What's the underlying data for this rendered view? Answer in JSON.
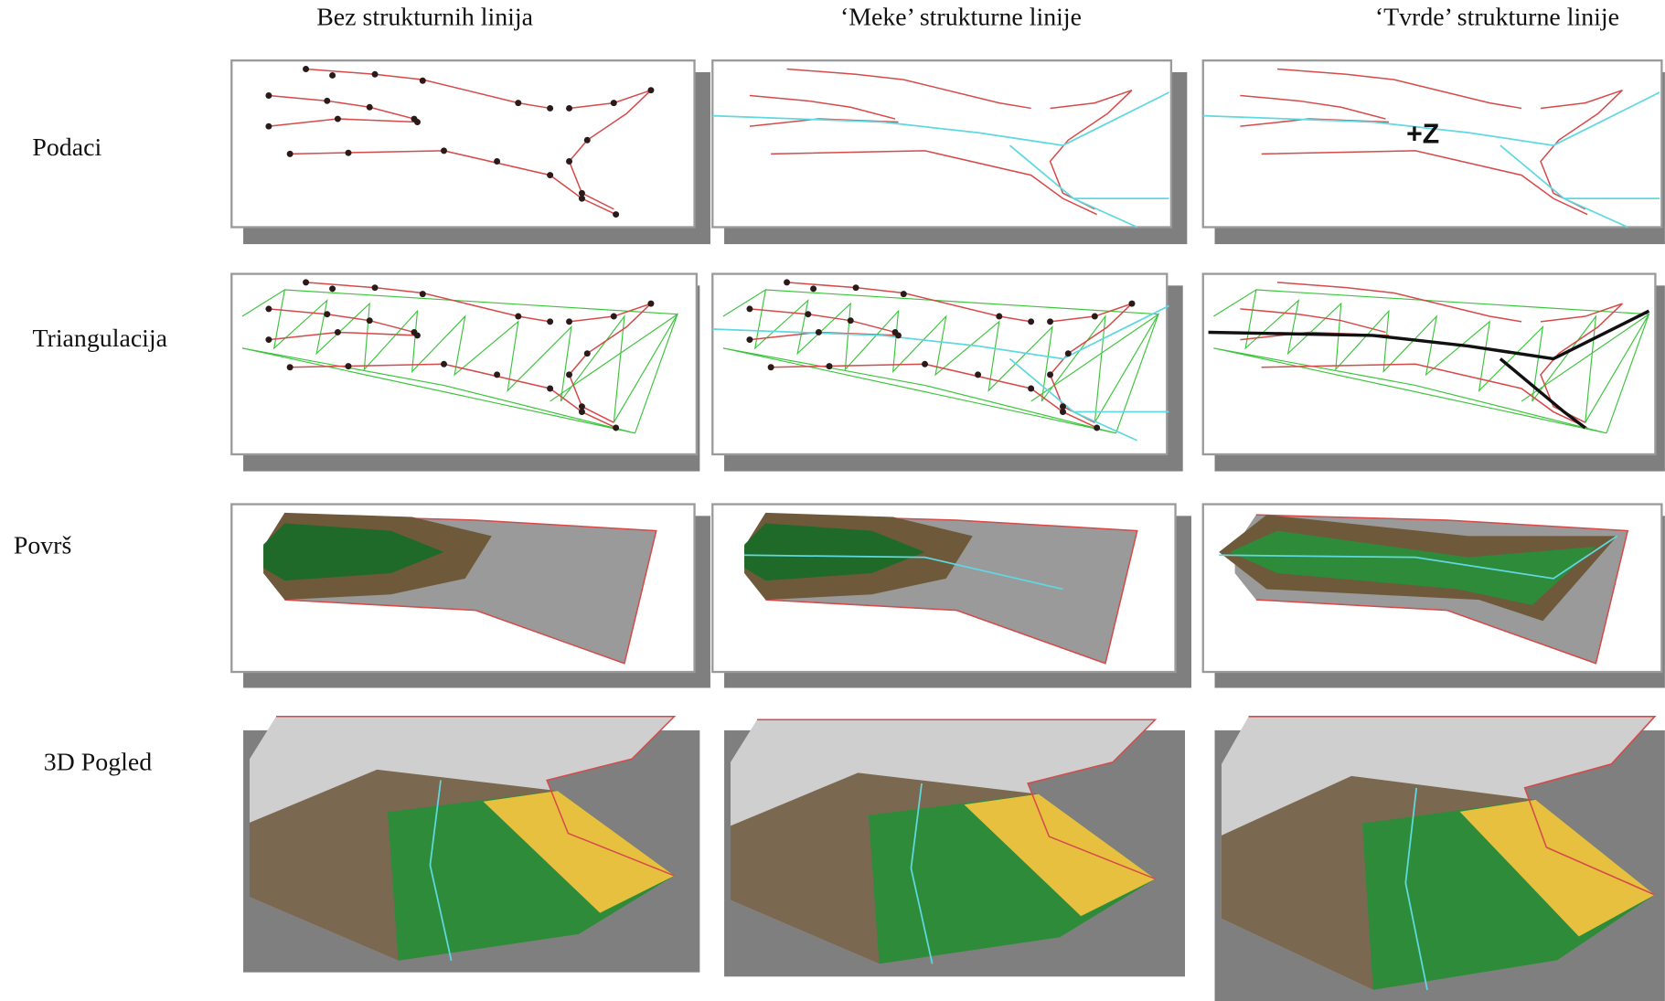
{
  "header": {
    "columns": [
      "Bez strukturnih linija",
      "‘Meke’ strukturne linije",
      "‘Tvrde’ strukturne linije"
    ]
  },
  "rows": [
    "Podaci",
    "Triangulacija",
    "Površ",
    "3D Pogled"
  ],
  "annotation": "+Z"
}
